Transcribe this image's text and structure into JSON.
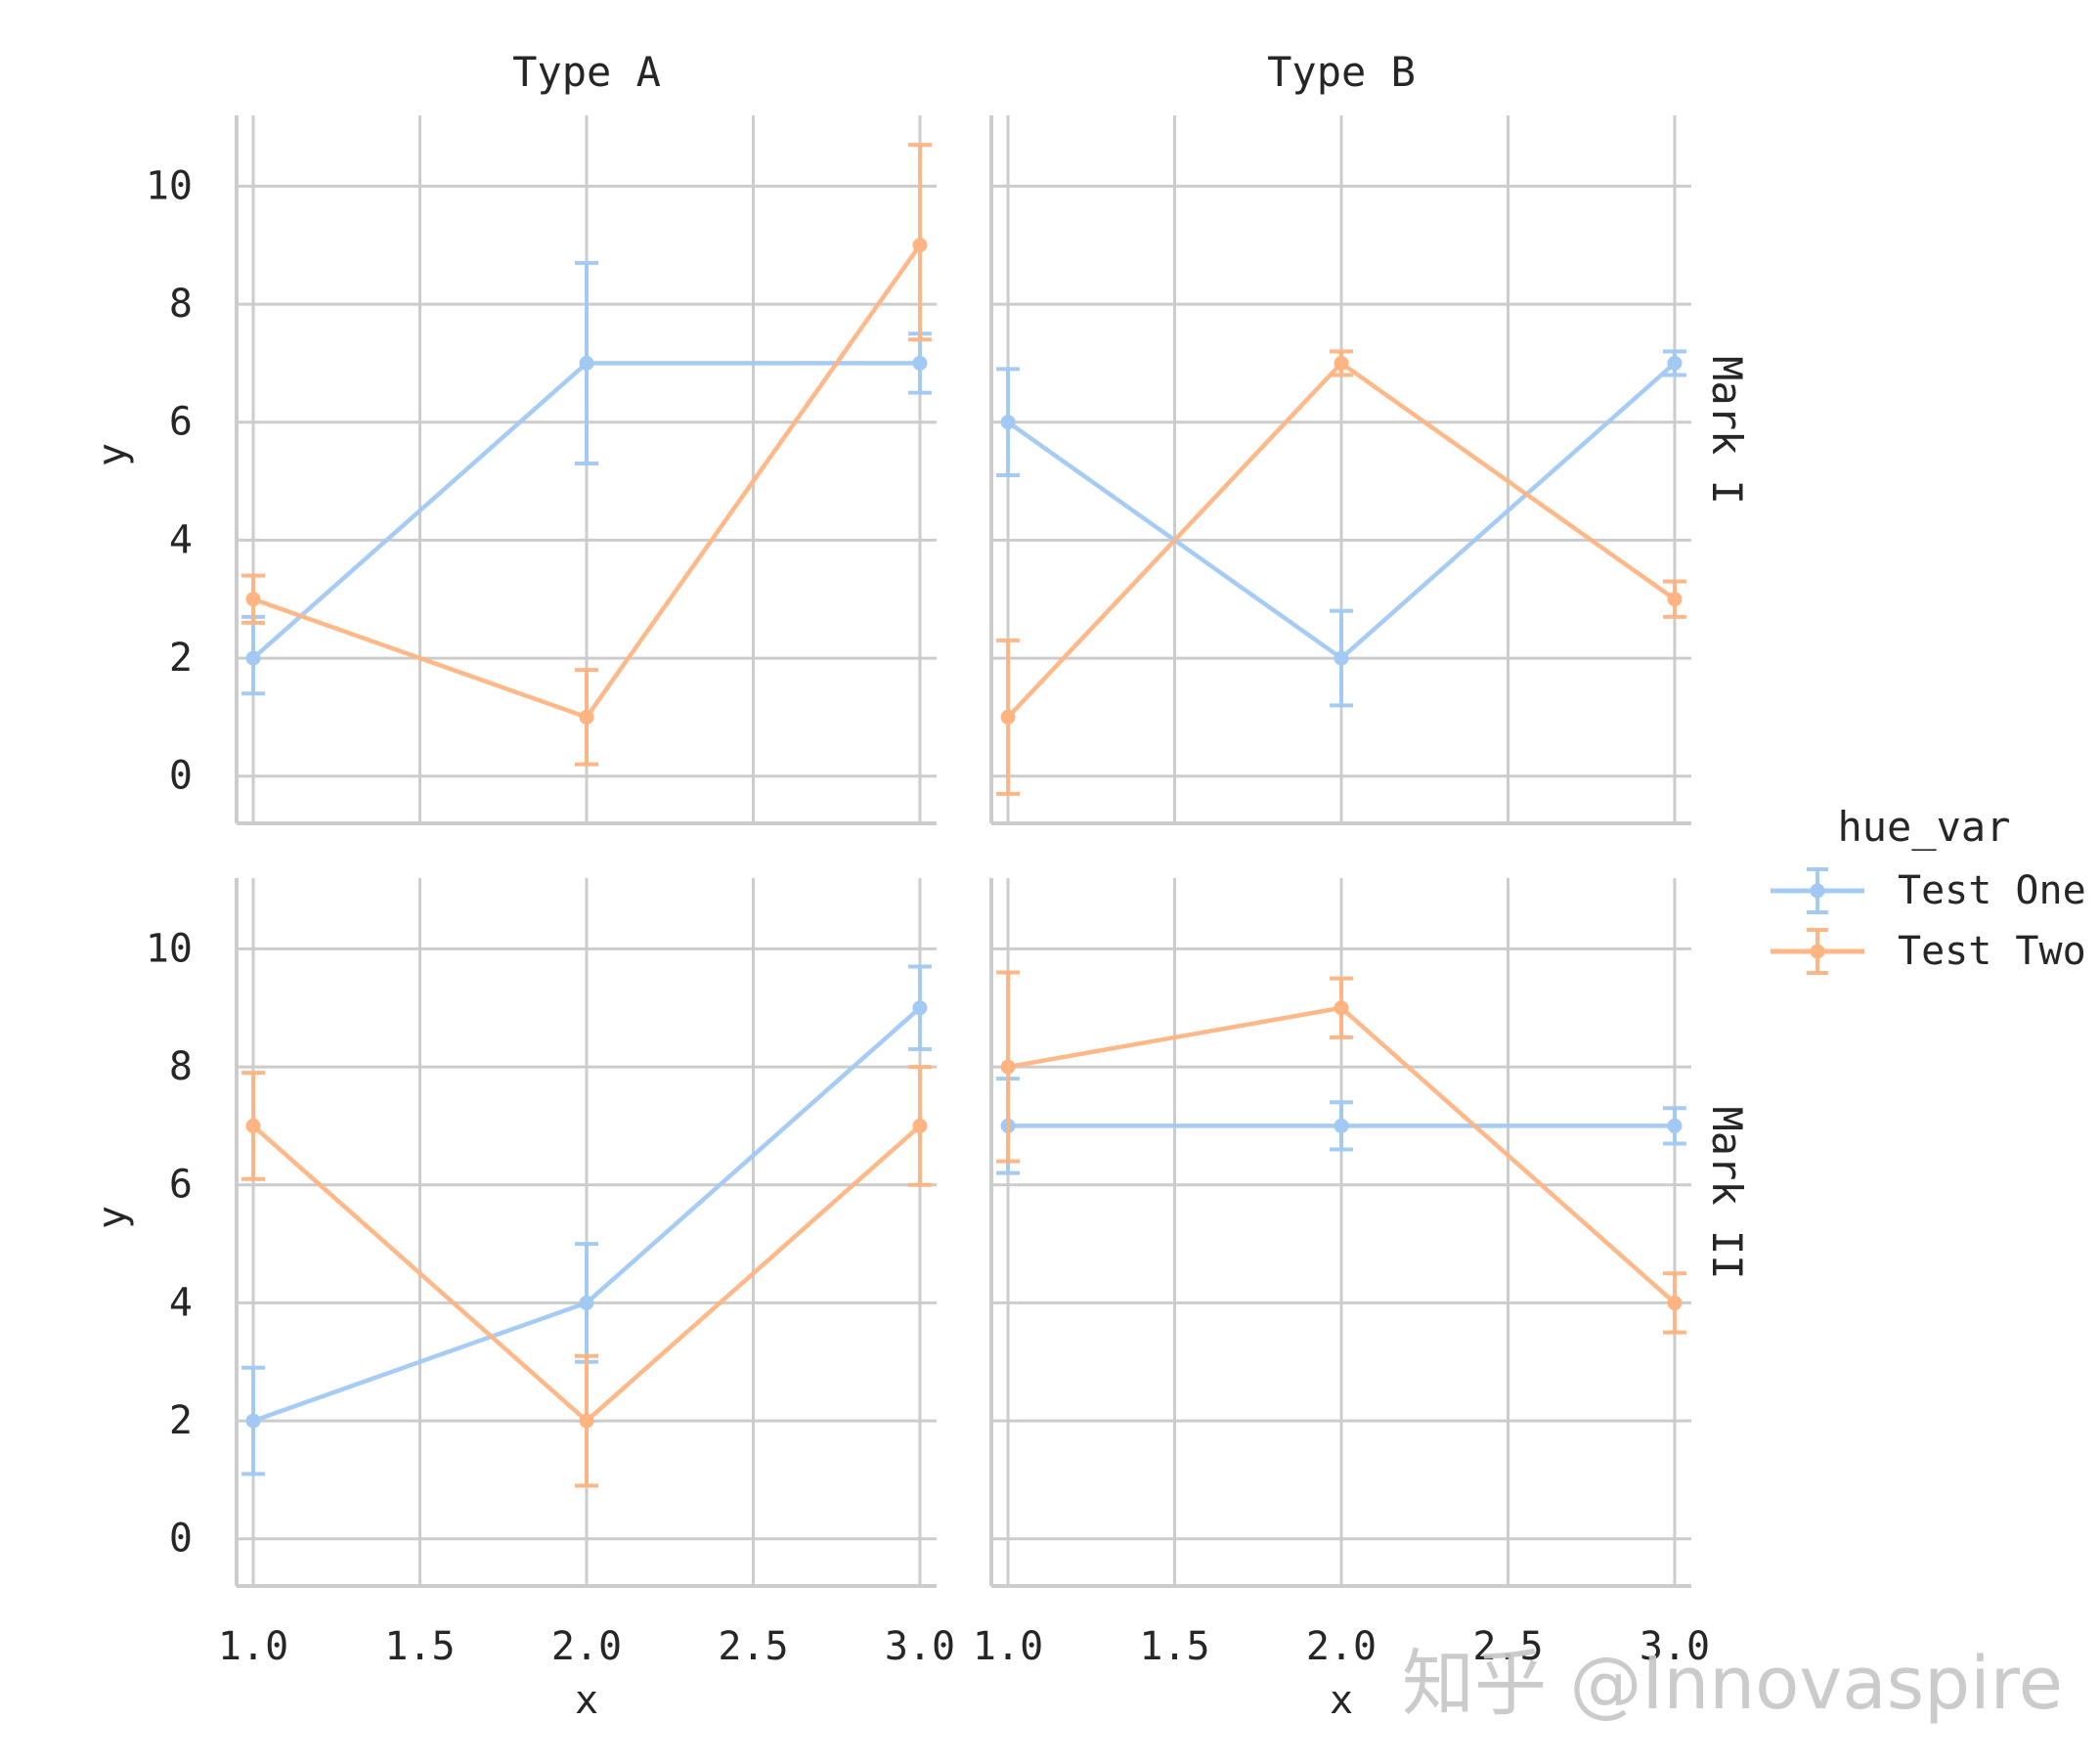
{
  "chart_data": {
    "type": "line",
    "facet_columns": [
      "Type A",
      "Type B"
    ],
    "facet_rows": [
      "Mark I",
      "Mark II"
    ],
    "xlabel": "x",
    "ylabel": "y",
    "xlim": [
      0.95,
      3.05
    ],
    "ylim": [
      -0.8,
      11.2
    ],
    "x_ticks": [
      "1.0",
      "1.5",
      "2.0",
      "2.5",
      "3.0"
    ],
    "y_ticks": [
      "0",
      "2",
      "4",
      "6",
      "8",
      "10"
    ],
    "grid": true,
    "legend": {
      "title": "hue_var",
      "placement": "right",
      "entries": [
        {
          "name": "Test One",
          "color": "#a1c9f4"
        },
        {
          "name": "Test Two",
          "color": "#ffb482"
        }
      ]
    },
    "panels": [
      {
        "col": "Type A",
        "row": "Mark I",
        "series": [
          {
            "name": "Test One",
            "x": [
              1,
              2,
              3
            ],
            "y": [
              2,
              7,
              7
            ],
            "err_low": [
              1.4,
              5.3,
              6.5
            ],
            "err_high": [
              2.7,
              8.7,
              7.5
            ]
          },
          {
            "name": "Test Two",
            "x": [
              1,
              2,
              3
            ],
            "y": [
              3,
              1,
              9
            ],
            "err_low": [
              2.6,
              0.2,
              7.4
            ],
            "err_high": [
              3.4,
              1.8,
              10.7
            ]
          }
        ]
      },
      {
        "col": "Type B",
        "row": "Mark I",
        "series": [
          {
            "name": "Test One",
            "x": [
              1,
              2,
              3
            ],
            "y": [
              6,
              2,
              7
            ],
            "err_low": [
              5.1,
              1.2,
              6.8
            ],
            "err_high": [
              6.9,
              2.8,
              7.2
            ]
          },
          {
            "name": "Test Two",
            "x": [
              1,
              2,
              3
            ],
            "y": [
              1,
              7,
              3
            ],
            "err_low": [
              -0.3,
              6.8,
              2.7
            ],
            "err_high": [
              2.3,
              7.2,
              3.3
            ]
          }
        ]
      },
      {
        "col": "Type A",
        "row": "Mark II",
        "series": [
          {
            "name": "Test One",
            "x": [
              1,
              2,
              3
            ],
            "y": [
              2,
              4,
              9
            ],
            "err_low": [
              1.1,
              3.0,
              8.3
            ],
            "err_high": [
              2.9,
              5.0,
              9.7
            ]
          },
          {
            "name": "Test Two",
            "x": [
              1,
              2,
              3
            ],
            "y": [
              7,
              2,
              7
            ],
            "err_low": [
              6.1,
              0.9,
              6.0
            ],
            "err_high": [
              7.9,
              3.1,
              8.0
            ]
          }
        ]
      },
      {
        "col": "Type B",
        "row": "Mark II",
        "series": [
          {
            "name": "Test One",
            "x": [
              1,
              2,
              3
            ],
            "y": [
              7,
              7,
              7
            ],
            "err_low": [
              6.2,
              6.6,
              6.7
            ],
            "err_high": [
              7.8,
              7.4,
              7.3
            ]
          },
          {
            "name": "Test Two",
            "x": [
              1,
              2,
              3
            ],
            "y": [
              8,
              9,
              4
            ],
            "err_low": [
              6.4,
              8.5,
              3.5
            ],
            "err_high": [
              9.6,
              9.5,
              4.5
            ]
          }
        ]
      }
    ]
  },
  "watermark": "知乎 @Innovaspire"
}
